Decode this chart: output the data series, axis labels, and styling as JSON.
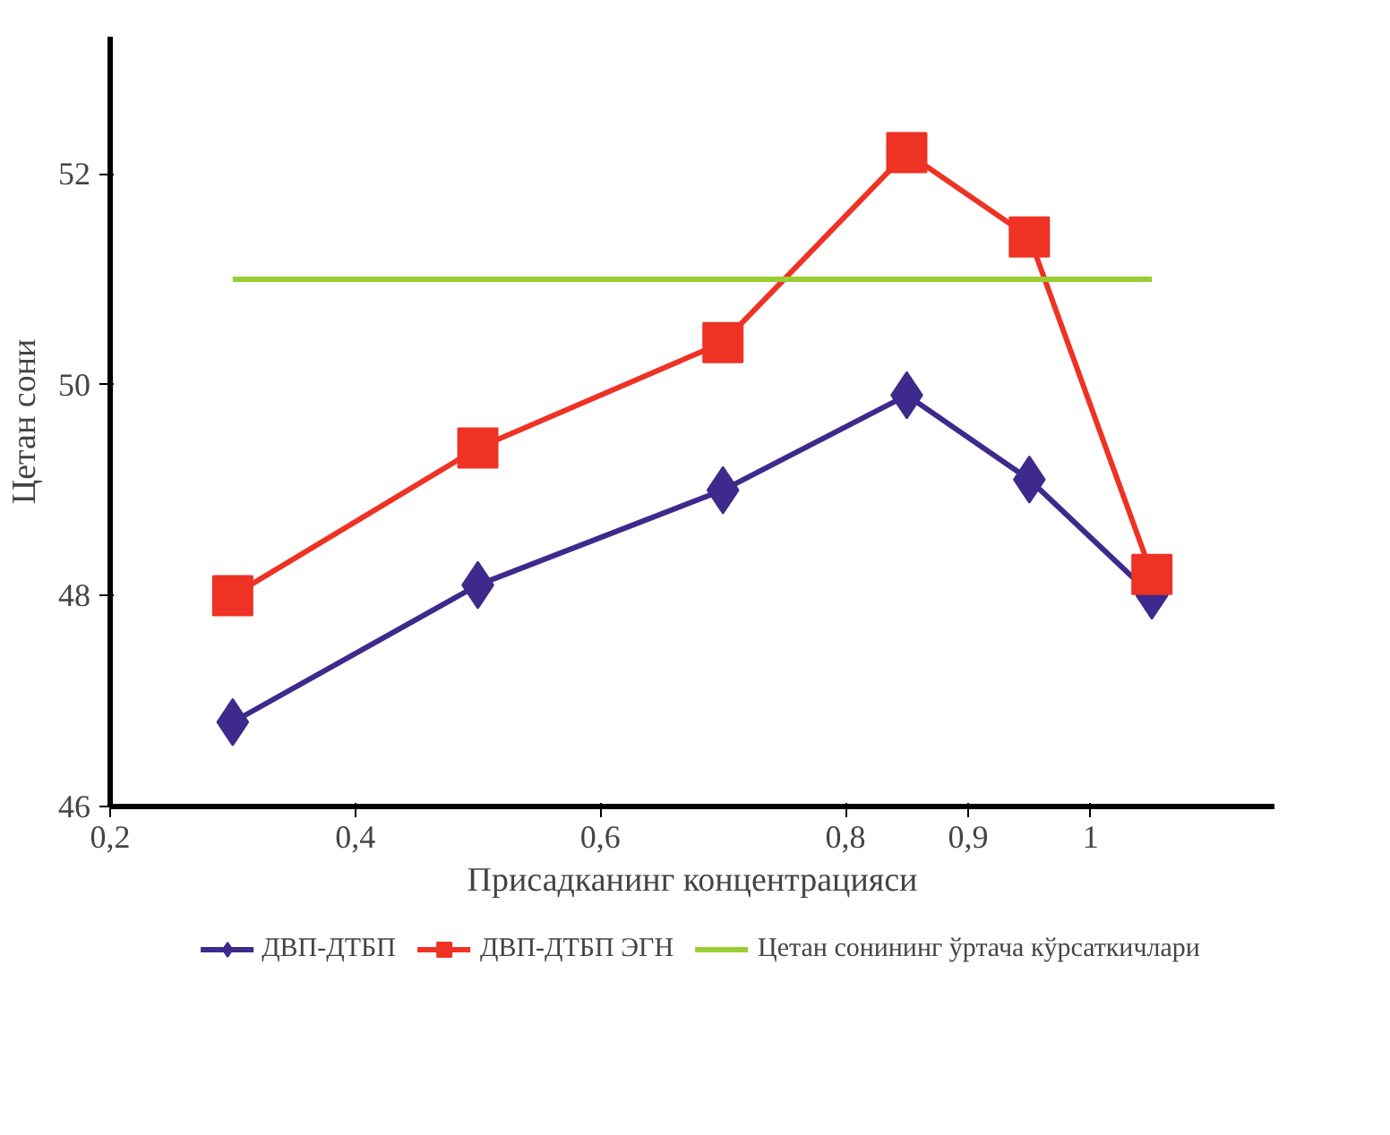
{
  "chart_data": {
    "type": "line",
    "xlabel": "Присадканинг концентрацияси",
    "ylabel": "Цетан сони",
    "xlim": [
      0.2,
      1.15
    ],
    "ylim": [
      46,
      53.3
    ],
    "xticks": [
      {
        "value": 0.2,
        "label": "0,2"
      },
      {
        "value": 0.4,
        "label": "0,4"
      },
      {
        "value": 0.6,
        "label": "0,6"
      },
      {
        "value": 0.8,
        "label": "0,8"
      },
      {
        "value": 0.9,
        "label": "0,9"
      },
      {
        "value": 1,
        "label": "1"
      }
    ],
    "yticks": [
      46,
      48,
      50,
      52
    ],
    "x": [
      0.3,
      0.5,
      0.7,
      0.85,
      0.95,
      1.05
    ],
    "series": [
      {
        "name": "ДВП-ДТБП",
        "color": "#3d2a8c",
        "marker": "diamond",
        "values": [
          46.8,
          48.1,
          49.0,
          49.9,
          49.1,
          48.0
        ]
      },
      {
        "name": "ДВП-ДТБП ЭГН",
        "color": "#ee3224",
        "marker": "square",
        "values": [
          48.0,
          49.4,
          50.4,
          52.2,
          51.4,
          48.2
        ]
      },
      {
        "name": "Цетан сонининг ўртача кўрсаткичлари",
        "color": "#9acd32",
        "marker": "none",
        "x": [
          0.3,
          1.05
        ],
        "values": [
          51.0,
          51.0
        ]
      }
    ],
    "grid": false,
    "legend": "bottom"
  }
}
